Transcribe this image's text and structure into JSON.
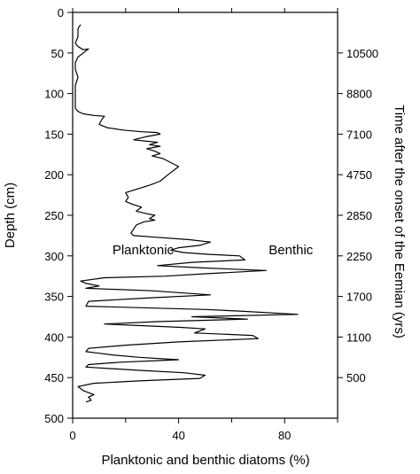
{
  "chart_data": {
    "type": "line",
    "xlabel": "Planktonic and benthic diatoms (%)",
    "ylabel_left": "Depth (cm)",
    "ylabel_right": "Time after the onset of the Eemian (yrs)",
    "xlim": [
      0,
      100
    ],
    "ylim": [
      500,
      0
    ],
    "x_ticks": [
      0,
      40,
      80
    ],
    "x_minor_ticks": [
      20,
      60,
      100
    ],
    "y_ticks": [
      0,
      50,
      100,
      150,
      200,
      250,
      300,
      350,
      400,
      450,
      500
    ],
    "right_ticks": [
      {
        "depth": 50,
        "label": "10500"
      },
      {
        "depth": 100,
        "label": "8800"
      },
      {
        "depth": 150,
        "label": "7100"
      },
      {
        "depth": 200,
        "label": "4750"
      },
      {
        "depth": 250,
        "label": "2850"
      },
      {
        "depth": 300,
        "label": "2250"
      },
      {
        "depth": 350,
        "label": "1700"
      },
      {
        "depth": 400,
        "label": "1100"
      },
      {
        "depth": 450,
        "label": "500"
      }
    ],
    "annotations": [
      {
        "text": "Planktonic",
        "x": 15,
        "depth": 298
      },
      {
        "text": "Benthic",
        "x": 74,
        "depth": 298
      }
    ],
    "series": [
      {
        "points": [
          [
            3,
            15
          ],
          [
            2,
            20
          ],
          [
            2,
            30
          ],
          [
            1,
            38
          ],
          [
            2,
            42
          ],
          [
            3,
            44
          ],
          [
            4,
            46
          ],
          [
            6,
            45
          ],
          [
            4,
            50
          ],
          [
            2,
            55
          ],
          [
            1,
            62
          ],
          [
            1,
            70
          ],
          [
            2,
            80
          ],
          [
            1,
            90
          ],
          [
            1,
            100
          ],
          [
            1,
            110
          ],
          [
            1,
            118
          ],
          [
            2,
            122
          ],
          [
            4,
            125
          ],
          [
            8,
            127
          ],
          [
            12,
            128
          ],
          [
            11,
            132
          ],
          [
            10,
            138
          ],
          [
            13,
            142
          ],
          [
            19,
            145
          ],
          [
            26,
            147
          ],
          [
            32,
            148
          ],
          [
            33,
            150
          ],
          [
            28,
            153
          ],
          [
            23,
            157
          ],
          [
            32,
            160
          ],
          [
            29,
            163
          ],
          [
            33,
            165
          ],
          [
            28,
            168
          ],
          [
            31,
            171
          ],
          [
            33,
            174
          ],
          [
            30,
            177
          ],
          [
            34,
            180
          ],
          [
            40,
            190
          ],
          [
            36,
            200
          ],
          [
            33,
            208
          ],
          [
            29,
            213
          ],
          [
            24,
            218
          ],
          [
            20,
            222
          ],
          [
            21,
            228
          ],
          [
            20,
            233
          ],
          [
            23,
            237
          ],
          [
            26,
            240
          ],
          [
            24,
            245
          ],
          [
            28,
            248
          ],
          [
            31,
            250
          ],
          [
            29,
            254
          ],
          [
            31,
            256
          ],
          [
            27,
            258
          ],
          [
            24,
            262
          ],
          [
            23,
            267
          ],
          [
            22,
            272
          ],
          [
            23,
            275
          ],
          [
            31,
            277
          ],
          [
            44,
            280
          ],
          [
            52,
            283
          ],
          [
            48,
            287
          ],
          [
            40,
            290
          ],
          [
            37,
            293
          ],
          [
            42,
            296
          ],
          [
            51,
            298
          ],
          [
            63,
            300
          ],
          [
            65,
            305
          ],
          [
            45,
            308
          ],
          [
            32,
            312
          ],
          [
            50,
            315
          ],
          [
            73,
            318
          ],
          [
            50,
            322
          ],
          [
            35,
            325
          ],
          [
            12,
            327
          ],
          [
            3,
            331
          ],
          [
            5,
            334
          ],
          [
            10,
            337
          ],
          [
            5,
            340
          ],
          [
            30,
            343
          ],
          [
            52,
            348
          ],
          [
            28,
            352
          ],
          [
            6,
            356
          ],
          [
            5,
            362
          ],
          [
            50,
            366
          ],
          [
            63,
            368
          ],
          [
            85,
            372
          ],
          [
            45,
            375
          ],
          [
            66,
            378
          ],
          [
            32,
            381
          ],
          [
            12,
            384
          ],
          [
            40,
            388
          ],
          [
            50,
            390
          ],
          [
            46,
            395
          ],
          [
            68,
            398
          ],
          [
            70,
            402
          ],
          [
            40,
            406
          ],
          [
            20,
            410
          ],
          [
            6,
            414
          ],
          [
            5,
            418
          ],
          [
            10,
            420
          ],
          [
            15,
            422
          ],
          [
            25,
            425
          ],
          [
            40,
            428
          ],
          [
            18,
            431
          ],
          [
            6,
            434
          ],
          [
            5,
            437
          ],
          [
            25,
            441
          ],
          [
            42,
            444
          ],
          [
            50,
            447
          ],
          [
            48,
            451
          ],
          [
            25,
            454
          ],
          [
            8,
            457
          ],
          [
            2,
            461
          ],
          [
            4,
            466
          ],
          [
            8,
            471
          ],
          [
            6,
            474
          ],
          [
            7,
            478
          ],
          [
            5,
            480
          ]
        ]
      }
    ]
  }
}
